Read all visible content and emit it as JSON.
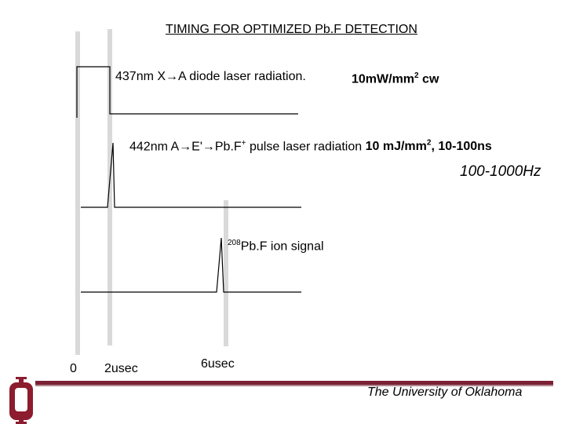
{
  "title": "TIMING FOR OPTIMIZED Pb.F DETECTION",
  "cw_laser": {
    "label": "437nm X→A diode laser radiation.",
    "power_main": "10mW/mm",
    "power_sup": "2",
    "power_tail": " cw"
  },
  "pulse_laser": {
    "label_a": "442nm A→E'→Pb.F",
    "label_a_sup": "+",
    "label_b": " pulse laser radiation ",
    "energy_main": "10 mJ/mm",
    "energy_sup": "2",
    "energy_tail": ", 10-100ns",
    "rep_rate": "100-1000Hz"
  },
  "ion_signal": {
    "isotope_sup": "208",
    "label": "Pb.F ion signal"
  },
  "time_ticks": [
    "0",
    "2usec",
    "6usec"
  ],
  "footer": {
    "university": "The University of Oklahoma",
    "logo_letters": "OU"
  },
  "colors": {
    "footer_bar": "#7b2035",
    "logo": "#8c1c2e",
    "marker_lines": "#d9d9d9",
    "trace": "#000000"
  }
}
